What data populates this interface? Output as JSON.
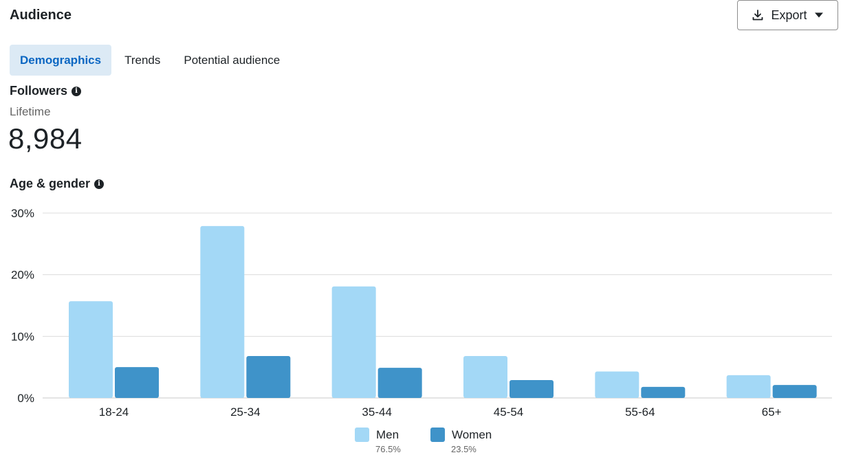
{
  "header": {
    "title": "Audience",
    "export_label": "Export"
  },
  "tabs": [
    {
      "label": "Demographics",
      "active": true
    },
    {
      "label": "Trends",
      "active": false
    },
    {
      "label": "Potential audience",
      "active": false
    }
  ],
  "followers": {
    "title": "Followers",
    "period": "Lifetime",
    "count": "8,984"
  },
  "age_gender": {
    "title": "Age & gender"
  },
  "colors": {
    "men": "#a3d8f6",
    "women": "#3f93c9",
    "accent": "#0a66c2",
    "grid": "#dcdcdc"
  },
  "legend": {
    "men": {
      "name": "Men",
      "pct": "76.5%"
    },
    "women": {
      "name": "Women",
      "pct": "23.5%"
    }
  },
  "chart_data": {
    "type": "bar",
    "categories": [
      "18-24",
      "25-34",
      "35-44",
      "45-54",
      "55-64",
      "65+"
    ],
    "series": [
      {
        "name": "Men",
        "values": [
          15.7,
          27.9,
          18.1,
          6.8,
          4.3,
          3.7
        ]
      },
      {
        "name": "Women",
        "values": [
          5.0,
          6.8,
          4.9,
          2.9,
          1.8,
          2.1
        ]
      }
    ],
    "ylim": [
      0,
      30
    ],
    "yticks": [
      "0%",
      "10%",
      "20%",
      "30%"
    ],
    "grid": true,
    "legend_position": "bottom"
  }
}
